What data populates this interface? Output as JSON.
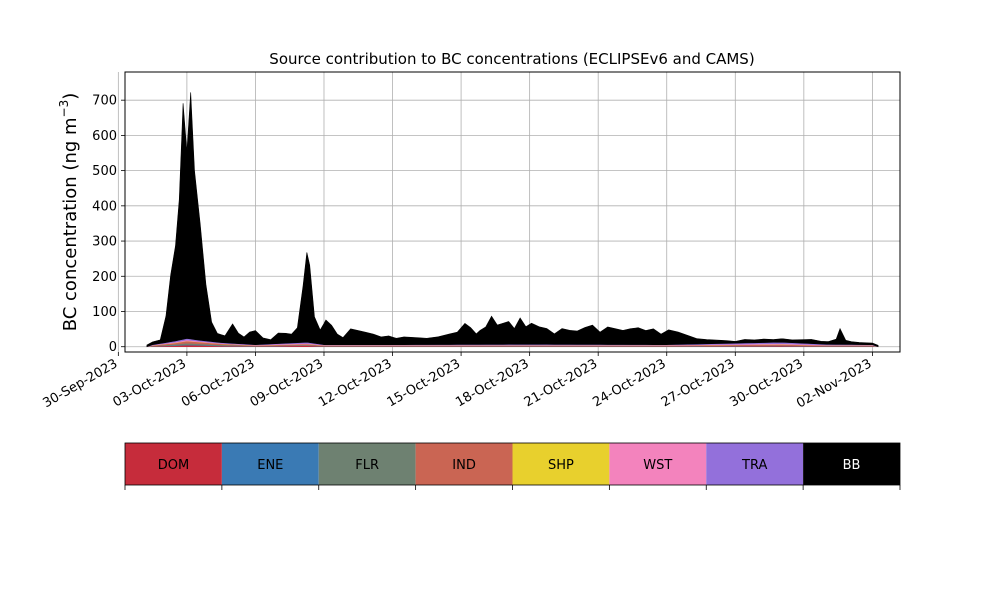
{
  "chart_data": {
    "type": "area",
    "title": "Source contribution to BC concentrations (ECLIPSEv6 and CAMS)",
    "xlabel": "",
    "ylabel": "BC concentration (ng m",
    "ylabel_superscript": "−3",
    "ylabel_suffix": ")",
    "ylim": [
      -15,
      780
    ],
    "xlim": [
      "2023-09-30T07:00",
      "2023-11-03T05:00"
    ],
    "yticks": [
      0,
      100,
      200,
      300,
      400,
      500,
      600,
      700
    ],
    "xticks": [
      "30-Sep-2023",
      "03-Oct-2023",
      "06-Oct-2023",
      "09-Oct-2023",
      "12-Oct-2023",
      "15-Oct-2023",
      "18-Oct-2023",
      "21-Oct-2023",
      "24-Oct-2023",
      "27-Oct-2023",
      "30-Oct-2023",
      "02-Nov-2023"
    ],
    "grid": true,
    "stacked": true,
    "series": [
      {
        "name": "DOM",
        "color": "#c62c3b",
        "x": [
          "2023-10-01T12:00",
          "2023-10-02T12:00",
          "2023-10-03T00:00",
          "2023-10-03T12:00",
          "2023-10-04T12:00",
          "2023-10-06T00:00",
          "2023-10-08T06:00",
          "2023-10-09T00:00",
          "2023-10-12T00:00",
          "2023-10-18T00:00",
          "2023-10-24T00:00",
          "2023-10-29T00:00",
          "2023-10-31T00:00",
          "2023-11-02T00:00"
        ],
        "values": [
          1,
          3,
          5,
          4,
          2,
          1,
          3,
          1,
          1,
          1,
          1,
          2,
          1,
          1
        ]
      },
      {
        "name": "ENE",
        "color": "#3a7ab4",
        "x": [
          "2023-10-01T12:00",
          "2023-10-03T00:00",
          "2023-10-06T00:00",
          "2023-10-15T00:00",
          "2023-10-24T00:00",
          "2023-11-02T00:00"
        ],
        "values": [
          0.5,
          1,
          0.5,
          0.5,
          0.5,
          0.5
        ]
      },
      {
        "name": "FLR",
        "color": "#6e8171",
        "x": [
          "2023-10-01T12:00",
          "2023-10-03T00:00",
          "2023-10-06T00:00",
          "2023-10-15T00:00",
          "2023-10-24T00:00",
          "2023-11-02T00:00"
        ],
        "values": [
          1,
          4,
          1,
          1,
          1,
          1
        ]
      },
      {
        "name": "IND",
        "color": "#ca6553",
        "x": [
          "2023-10-01T12:00",
          "2023-10-02T12:00",
          "2023-10-03T00:00",
          "2023-10-03T12:00",
          "2023-10-04T12:00",
          "2023-10-06T00:00",
          "2023-10-08T06:00",
          "2023-10-09T00:00",
          "2023-10-12T00:00",
          "2023-10-18T00:00",
          "2023-10-24T00:00",
          "2023-10-29T00:00",
          "2023-10-31T00:00",
          "2023-11-02T00:00"
        ],
        "values": [
          1,
          4,
          6,
          5,
          3,
          1,
          3,
          1,
          1,
          1,
          1,
          3,
          1,
          1
        ]
      },
      {
        "name": "SHP",
        "color": "#e8d02d",
        "x": [
          "2023-10-01T12:00",
          "2023-10-03T00:00",
          "2023-10-06T00:00",
          "2023-10-15T00:00",
          "2023-10-24T00:00",
          "2023-11-02T00:00"
        ],
        "values": [
          0.3,
          0.5,
          0.3,
          0.3,
          0.3,
          0.3
        ]
      },
      {
        "name": "WST",
        "color": "#f383bd",
        "x": [
          "2023-10-01T12:00",
          "2023-10-02T12:00",
          "2023-10-03T00:00",
          "2023-10-03T12:00",
          "2023-10-04T12:00",
          "2023-10-06T00:00",
          "2023-10-08T06:00",
          "2023-10-09T00:00",
          "2023-10-12T00:00",
          "2023-10-18T00:00",
          "2023-10-24T00:00",
          "2023-10-29T00:00",
          "2023-10-31T00:00",
          "2023-11-02T00:00"
        ],
        "values": [
          1,
          2,
          3,
          2,
          1,
          1,
          2,
          1,
          1,
          1,
          1,
          2,
          1,
          1
        ]
      },
      {
        "name": "TRA",
        "color": "#9370db",
        "x": [
          "2023-10-01T12:00",
          "2023-10-02T12:00",
          "2023-10-03T00:00",
          "2023-10-03T12:00",
          "2023-10-04T12:00",
          "2023-10-06T00:00",
          "2023-10-08T06:00",
          "2023-10-09T00:00",
          "2023-10-12T00:00",
          "2023-10-18T00:00",
          "2023-10-24T00:00",
          "2023-10-29T00:00",
          "2023-10-31T00:00",
          "2023-11-02T00:00"
        ],
        "values": [
          1,
          3,
          4,
          3,
          2,
          1,
          3,
          1,
          1,
          2,
          1,
          4,
          2,
          1
        ]
      },
      {
        "name": "BB",
        "color": "#000000",
        "x": [
          "2023-10-01T06:00",
          "2023-10-01T12:00",
          "2023-10-01T20:00",
          "2023-10-02T02:00",
          "2023-10-02T07:00",
          "2023-10-02T12:00",
          "2023-10-02T16:00",
          "2023-10-02T20:00",
          "2023-10-03T00:00",
          "2023-10-03T04:00",
          "2023-10-03T08:00",
          "2023-10-03T14:00",
          "2023-10-03T20:00",
          "2023-10-04T02:00",
          "2023-10-04T08:00",
          "2023-10-04T16:00",
          "2023-10-05T00:00",
          "2023-10-05T06:00",
          "2023-10-05T12:00",
          "2023-10-05T18:00",
          "2023-10-06T00:00",
          "2023-10-06T08:00",
          "2023-10-06T16:00",
          "2023-10-07T00:00",
          "2023-10-07T08:00",
          "2023-10-07T14:00",
          "2023-10-07T20:00",
          "2023-10-08T02:00",
          "2023-10-08T06:00",
          "2023-10-08T09:00",
          "2023-10-08T14:00",
          "2023-10-08T20:00",
          "2023-10-09T02:00",
          "2023-10-09T08:00",
          "2023-10-09T14:00",
          "2023-10-09T20:00",
          "2023-10-10T04:00",
          "2023-10-10T12:00",
          "2023-10-10T20:00",
          "2023-10-11T04:00",
          "2023-10-11T12:00",
          "2023-10-11T20:00",
          "2023-10-12T04:00",
          "2023-10-12T12:00",
          "2023-10-13T00:00",
          "2023-10-13T12:00",
          "2023-10-14T00:00",
          "2023-10-14T12:00",
          "2023-10-14T20:00",
          "2023-10-15T04:00",
          "2023-10-15T10:00",
          "2023-10-15T16:00",
          "2023-10-15T20:00",
          "2023-10-16T02:00",
          "2023-10-16T08:00",
          "2023-10-16T14:00",
          "2023-10-16T20:00",
          "2023-10-17T02:00",
          "2023-10-17T08:00",
          "2023-10-17T14:00",
          "2023-10-17T20:00",
          "2023-10-18T02:00",
          "2023-10-18T10:00",
          "2023-10-18T18:00",
          "2023-10-19T02:00",
          "2023-10-19T10:00",
          "2023-10-19T18:00",
          "2023-10-20T02:00",
          "2023-10-20T10:00",
          "2023-10-20T18:00",
          "2023-10-21T02:00",
          "2023-10-21T10:00",
          "2023-10-21T18:00",
          "2023-10-22T02:00",
          "2023-10-22T10:00",
          "2023-10-22T18:00",
          "2023-10-23T02:00",
          "2023-10-23T10:00",
          "2023-10-23T18:00",
          "2023-10-24T02:00",
          "2023-10-24T12:00",
          "2023-10-24T22:00",
          "2023-10-25T08:00",
          "2023-10-25T18:00",
          "2023-10-26T04:00",
          "2023-10-26T14:00",
          "2023-10-27T00:00",
          "2023-10-27T10:00",
          "2023-10-27T20:00",
          "2023-10-28T06:00",
          "2023-10-28T16:00",
          "2023-10-29T02:00",
          "2023-10-29T12:00",
          "2023-10-29T22:00",
          "2023-10-30T08:00",
          "2023-10-30T18:00",
          "2023-10-31T02:00",
          "2023-10-31T10:00",
          "2023-10-31T14:00",
          "2023-10-31T20:00",
          "2023-11-01T02:00",
          "2023-11-01T10:00",
          "2023-11-01T20:00",
          "2023-11-02T06:00"
        ],
        "values": [
          5,
          8,
          10,
          75,
          190,
          270,
          400,
          670,
          530,
          700,
          480,
          330,
          160,
          55,
          25,
          20,
          55,
          30,
          20,
          35,
          40,
          18,
          12,
          30,
          28,
          25,
          42,
          160,
          255,
          220,
          75,
          40,
          70,
          55,
          30,
          20,
          45,
          40,
          35,
          30,
          22,
          25,
          18,
          22,
          20,
          18,
          22,
          30,
          35,
          60,
          48,
          30,
          40,
          50,
          80,
          55,
          60,
          65,
          45,
          75,
          50,
          60,
          50,
          45,
          30,
          45,
          40,
          38,
          48,
          55,
          35,
          50,
          45,
          40,
          45,
          48,
          40,
          45,
          30,
          42,
          35,
          25,
          15,
          12,
          10,
          8,
          5,
          10,
          8,
          10,
          8,
          10,
          8,
          10,
          12,
          8,
          8,
          15,
          45,
          12,
          8,
          6,
          5,
          4
        ]
      }
    ],
    "legend": [
      "DOM",
      "ENE",
      "FLR",
      "IND",
      "SHP",
      "WST",
      "TRA",
      "BB"
    ],
    "legend_position": "bottom",
    "legend_style": "colorbar"
  }
}
